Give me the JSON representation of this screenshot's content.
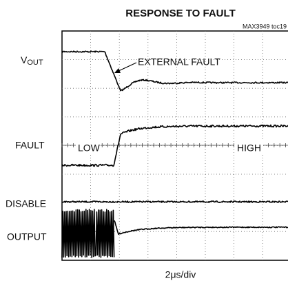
{
  "title": "RESPONSE TO FAULT",
  "note": "MAX3949 toc19",
  "x_label": "2μs/div",
  "trace_labels": [
    {
      "main": "V",
      "sub": "OUT"
    },
    {
      "main": "FAULT"
    },
    {
      "main": "DISABLE"
    },
    {
      "main": "OUTPUT"
    }
  ],
  "annotations": {
    "fault": "EXTERNAL FAULT",
    "low": "LOW",
    "high": "HIGH"
  }
}
